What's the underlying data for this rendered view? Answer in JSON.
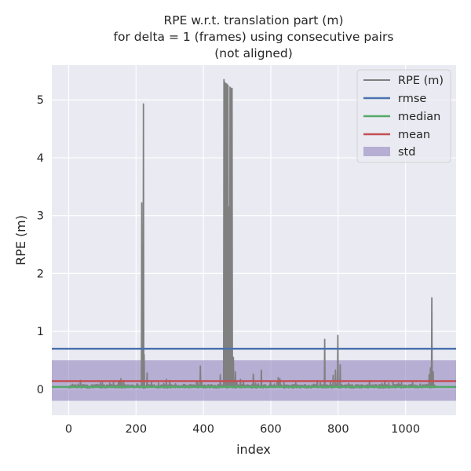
{
  "chart_data": {
    "type": "line",
    "title_lines": [
      "RPE w.r.t. translation part (m)",
      "for delta = 1 (frames) using consecutive pairs",
      "(not aligned)"
    ],
    "xlabel": "index",
    "ylabel": "RPE (m)",
    "xlim": [
      -50,
      1150
    ],
    "ylim": [
      -0.45,
      5.6
    ],
    "xticks": [
      0,
      200,
      400,
      600,
      800,
      1000
    ],
    "yticks": [
      0,
      1,
      2,
      3,
      4,
      5
    ],
    "grid": true,
    "legend_position": "top-right",
    "series": [
      {
        "name": "RPE (m)",
        "color": "#808080",
        "baseline": 0.05,
        "x_range": [
          0,
          1090
        ],
        "peaks": [
          [
            100,
            0.12
          ],
          [
            150,
            0.15
          ],
          [
            155,
            0.18
          ],
          [
            217,
            3.22
          ],
          [
            219,
            1.0
          ],
          [
            222,
            4.93
          ],
          [
            224,
            0.6
          ],
          [
            233,
            0.28
          ],
          [
            290,
            0.17
          ],
          [
            300,
            0.15
          ],
          [
            380,
            0.14
          ],
          [
            391,
            0.4
          ],
          [
            450,
            0.25
          ],
          [
            461,
            5.35
          ],
          [
            464,
            5.3
          ],
          [
            467,
            5.28
          ],
          [
            470,
            5.27
          ],
          [
            473,
            5.25
          ],
          [
            476,
            3.15
          ],
          [
            479,
            5.22
          ],
          [
            482,
            5.2
          ],
          [
            485,
            5.2
          ],
          [
            489,
            0.55
          ],
          [
            495,
            0.3
          ],
          [
            510,
            0.17
          ],
          [
            548,
            0.26
          ],
          [
            572,
            0.33
          ],
          [
            622,
            0.2
          ],
          [
            627,
            0.18
          ],
          [
            760,
            0.86
          ],
          [
            785,
            0.24
          ],
          [
            792,
            0.33
          ],
          [
            799,
            0.93
          ],
          [
            806,
            0.42
          ],
          [
            930,
            0.1
          ],
          [
            1070,
            0.25
          ],
          [
            1074,
            0.37
          ],
          [
            1078,
            1.58
          ],
          [
            1082,
            0.3
          ]
        ]
      },
      {
        "name": "rmse",
        "color": "#4c72b0",
        "value": 0.7
      },
      {
        "name": "median",
        "color": "#55a868",
        "value": 0.04
      },
      {
        "name": "mean",
        "color": "#c44e52",
        "value": 0.14
      },
      {
        "name": "std",
        "color": "#8172b3",
        "range": [
          -0.2,
          0.5
        ]
      }
    ]
  }
}
